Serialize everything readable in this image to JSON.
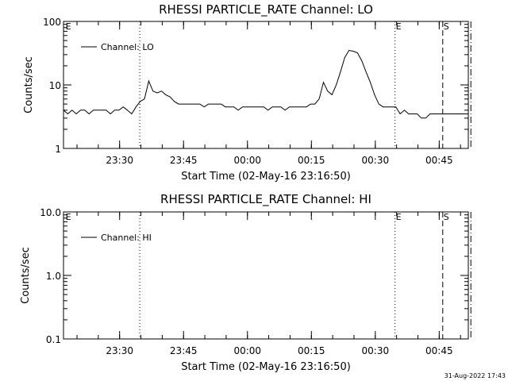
{
  "timestamp": "31-Aug-2022 17:43",
  "chart_data": [
    {
      "type": "line",
      "title": "RHESSI PARTICLE_RATE Channel: LO",
      "xlabel": "Start Time (02-May-16 23:16:50)",
      "ylabel": "Counts/sec",
      "yscale": "log",
      "ylim": [
        1,
        100
      ],
      "ytick_values": [
        1,
        10,
        100
      ],
      "ytick_labels": [
        "1",
        "10",
        "100"
      ],
      "xlim_minutes": [
        0,
        95
      ],
      "xtick_minutes": [
        13.17,
        28.17,
        43.17,
        58.17,
        73.17,
        88.17
      ],
      "xtick_labels": [
        "23:30",
        "23:45",
        "00:00",
        "00:15",
        "00:30",
        "00:45"
      ],
      "legend": "Channel: LO",
      "legend_position": "top-left",
      "markers": [
        {
          "minute": 0.3,
          "label": "E",
          "style": "none"
        },
        {
          "minute": 17.9,
          "label": "",
          "style": "dotted"
        },
        {
          "minute": 77.8,
          "label": "E",
          "style": "dotted"
        },
        {
          "minute": 89.0,
          "label": "S",
          "style": "dashed"
        },
        {
          "minute": 95.6,
          "label": "",
          "style": "dashdot"
        }
      ],
      "series": [
        {
          "name": "Channel: LO",
          "x": [
            0,
            1,
            2,
            3,
            4,
            5,
            6,
            7,
            8,
            9,
            10,
            11,
            12,
            13,
            14,
            15,
            16,
            17,
            18,
            19,
            20,
            21,
            22,
            23,
            24,
            25,
            26,
            27,
            28,
            29,
            30,
            31,
            32,
            33,
            34,
            35,
            36,
            37,
            38,
            39,
            40,
            41,
            42,
            43,
            44,
            45,
            46,
            47,
            48,
            49,
            50,
            51,
            52,
            53,
            54,
            55,
            56,
            57,
            58,
            59,
            60,
            61,
            62,
            63,
            64,
            65,
            66,
            67,
            68,
            69,
            70,
            71,
            72,
            73,
            74,
            75,
            76,
            77,
            78,
            79,
            80,
            81,
            82,
            83,
            84,
            85,
            86,
            87,
            88,
            89,
            90,
            91,
            92,
            93,
            94,
            95
          ],
          "y": [
            4,
            3.5,
            4,
            3.5,
            4,
            4,
            3.5,
            4,
            4,
            4,
            4,
            3.5,
            4,
            4,
            4.5,
            4,
            3.5,
            4.5,
            5.5,
            6,
            11.5,
            8,
            7.5,
            8,
            7,
            6.5,
            5.5,
            5,
            5,
            5,
            5,
            5,
            5,
            4.5,
            5,
            5,
            5,
            5,
            4.5,
            4.5,
            4.5,
            4,
            4.5,
            4.5,
            4.5,
            4.5,
            4.5,
            4.5,
            4,
            4.5,
            4.5,
            4.5,
            4,
            4.5,
            4.5,
            4.5,
            4.5,
            4.5,
            5,
            5,
            6,
            11,
            8,
            7,
            10,
            16,
            27,
            35,
            34,
            32,
            24,
            16,
            11,
            7,
            5,
            4.5,
            4.5,
            4.5,
            4.5,
            3.5,
            4,
            3.5,
            3.5,
            3.5,
            3,
            3,
            3.5,
            3.5,
            3.5,
            3.5,
            3.5,
            3.5,
            3.5,
            3.5,
            3.5,
            3.5
          ]
        }
      ]
    },
    {
      "type": "line",
      "title": "RHESSI PARTICLE_RATE Channel: HI",
      "xlabel": "Start Time (02-May-16 23:16:50)",
      "ylabel": "Counts/sec",
      "yscale": "log",
      "ylim": [
        0.1,
        10
      ],
      "ytick_values": [
        0.1,
        1,
        10
      ],
      "ytick_labels": [
        "0.1",
        "1.0",
        "10.0"
      ],
      "xlim_minutes": [
        0,
        95
      ],
      "xtick_minutes": [
        13.17,
        28.17,
        43.17,
        58.17,
        73.17,
        88.17
      ],
      "xtick_labels": [
        "23:30",
        "23:45",
        "00:00",
        "00:15",
        "00:30",
        "00:45"
      ],
      "legend": "Channel: HI",
      "legend_position": "top-left",
      "markers": [
        {
          "minute": 0.3,
          "label": "E",
          "style": "none"
        },
        {
          "minute": 17.9,
          "label": "",
          "style": "dotted"
        },
        {
          "minute": 77.8,
          "label": "E",
          "style": "dotted"
        },
        {
          "minute": 89.0,
          "label": "S",
          "style": "dashed"
        },
        {
          "minute": 95.6,
          "label": "",
          "style": "dashdot"
        }
      ],
      "series": [
        {
          "name": "Channel: HI",
          "x": [],
          "y": []
        }
      ]
    }
  ]
}
